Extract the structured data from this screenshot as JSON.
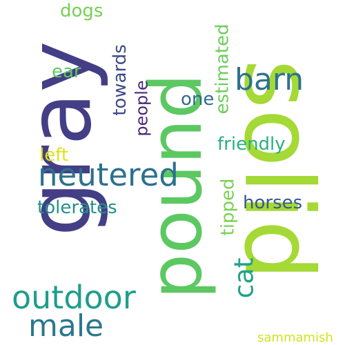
{
  "words": [
    {
      "id": "solid",
      "text": "solid",
      "color": "#a4d936",
      "rotated": true
    },
    {
      "id": "pound",
      "text": "pound",
      "color": "#5cc862",
      "rotated": true
    },
    {
      "id": "gray",
      "text": "gray",
      "color": "#433e85",
      "rotated": true
    },
    {
      "id": "neutered",
      "text": "neutered",
      "color": "#2c718e",
      "rotated": false
    },
    {
      "id": "outdoor",
      "text": "outdoor",
      "color": "#1f9e89",
      "rotated": false
    },
    {
      "id": "male",
      "text": "male",
      "color": "#2a788e",
      "rotated": false
    },
    {
      "id": "barn",
      "text": "barn",
      "color": "#2c728e",
      "rotated": false
    },
    {
      "id": "cat",
      "text": "cat",
      "color": "#20a386",
      "rotated": true
    },
    {
      "id": "friendly",
      "text": "friendly",
      "color": "#29af7f",
      "rotated": false
    },
    {
      "id": "horses",
      "text": "horses",
      "color": "#38598c",
      "rotated": false
    },
    {
      "id": "tolerates",
      "text": "tolerates",
      "color": "#21918c",
      "rotated": false
    },
    {
      "id": "estimated",
      "text": "estimated",
      "color": "#6ccd5a",
      "rotated": true
    },
    {
      "id": "tipped",
      "text": "tipped",
      "color": "#7ad151",
      "rotated": true
    },
    {
      "id": "towards",
      "text": "towards",
      "color": "#3e4a89",
      "rotated": true
    },
    {
      "id": "people",
      "text": "people",
      "color": "#482878",
      "rotated": true
    },
    {
      "id": "one",
      "text": "one",
      "color": "#306a8e",
      "rotated": false
    },
    {
      "id": "dogs",
      "text": "dogs",
      "color": "#75d054",
      "rotated": false
    },
    {
      "id": "ear",
      "text": "ear",
      "color": "#5ec962",
      "rotated": false
    },
    {
      "id": "left",
      "text": "left",
      "color": "#dde318",
      "rotated": false
    },
    {
      "id": "sammamish",
      "text": "sammamish",
      "color": "#d2e21b",
      "rotated": false
    }
  ]
}
